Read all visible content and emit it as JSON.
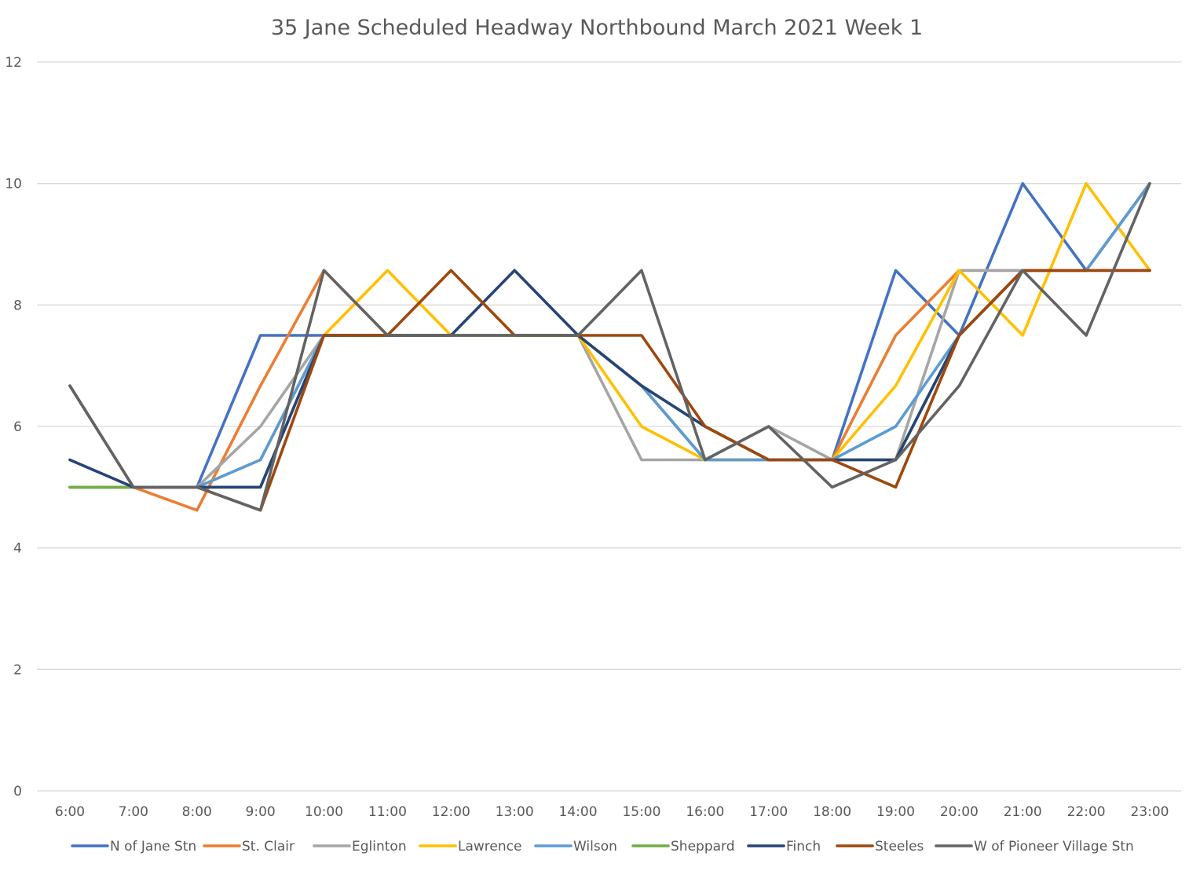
{
  "chart_data": {
    "type": "line",
    "title": "35 Jane  Scheduled Headway Northbound March 2021 Week 1",
    "xlabel": "",
    "ylabel": "",
    "ylim": [
      0,
      12
    ],
    "yticks": [
      "0",
      "2",
      "4",
      "6",
      "8",
      "10",
      "12"
    ],
    "grid": true,
    "legend": "bottom",
    "categories": [
      "6:00",
      "7:00",
      "8:00",
      "9:00",
      "10:00",
      "11:00",
      "12:00",
      "13:00",
      "14:00",
      "15:00",
      "16:00",
      "17:00",
      "18:00",
      "19:00",
      "20:00",
      "21:00",
      "22:00",
      "23:00"
    ],
    "series": [
      {
        "name": "N of Jane Stn",
        "color": "#4472c4",
        "values": [
          5,
          5,
          5,
          7.5,
          7.5,
          7.5,
          7.5,
          7.5,
          7.5,
          6.67,
          5.45,
          5.45,
          5.45,
          8.57,
          7.5,
          10,
          8.57,
          10
        ]
      },
      {
        "name": "St. Clair",
        "color": "#ed7d31",
        "values": [
          5,
          5,
          4.62,
          6.67,
          8.57,
          7.5,
          7.5,
          7.5,
          7.5,
          6.67,
          5.45,
          5.45,
          5.45,
          7.5,
          8.57,
          8.57,
          8.57,
          10
        ]
      },
      {
        "name": "Eglinton",
        "color": "#a5a5a5",
        "values": [
          5,
          5,
          5,
          6,
          7.5,
          7.5,
          7.5,
          7.5,
          7.5,
          5.45,
          5.45,
          6,
          5.45,
          5.45,
          8.57,
          8.57,
          8.57,
          10
        ]
      },
      {
        "name": "Lawrence",
        "color": "#ffc000",
        "values": [
          5,
          5,
          5,
          5.45,
          7.5,
          8.57,
          7.5,
          7.5,
          7.5,
          6,
          5.45,
          5.45,
          5.45,
          6.67,
          8.57,
          7.5,
          10,
          8.57
        ]
      },
      {
        "name": "Wilson",
        "color": "#5b9bd5",
        "values": [
          5,
          5,
          5,
          5.45,
          7.5,
          7.5,
          7.5,
          7.5,
          7.5,
          6.67,
          5.45,
          5.45,
          5.45,
          6,
          7.5,
          8.57,
          8.57,
          10
        ]
      },
      {
        "name": "Sheppard",
        "color": "#70ad47",
        "values": [
          5,
          5,
          5,
          5,
          7.5,
          7.5,
          7.5,
          7.5,
          7.5,
          6.67,
          6,
          5.45,
          5.45,
          5.45,
          7.5,
          8.57,
          8.57,
          8.57
        ]
      },
      {
        "name": "Finch",
        "color": "#264478",
        "values": [
          5.45,
          5,
          5,
          5,
          7.5,
          7.5,
          7.5,
          8.57,
          7.5,
          6.67,
          6,
          5.45,
          5.45,
          5.45,
          7.5,
          8.57,
          8.57,
          8.57
        ]
      },
      {
        "name": "Steeles",
        "color": "#9e480e",
        "values": [
          6.67,
          5,
          5,
          4.62,
          7.5,
          7.5,
          8.57,
          7.5,
          7.5,
          7.5,
          6,
          5.45,
          5.45,
          5,
          7.5,
          8.57,
          8.57,
          8.57
        ]
      },
      {
        "name": "W of Pioneer Village Stn",
        "color": "#636363",
        "values": [
          6.67,
          5,
          5,
          4.62,
          8.57,
          7.5,
          7.5,
          7.5,
          7.5,
          8.57,
          5.45,
          6,
          5,
          5.45,
          6.67,
          8.57,
          7.5,
          10
        ]
      }
    ]
  }
}
